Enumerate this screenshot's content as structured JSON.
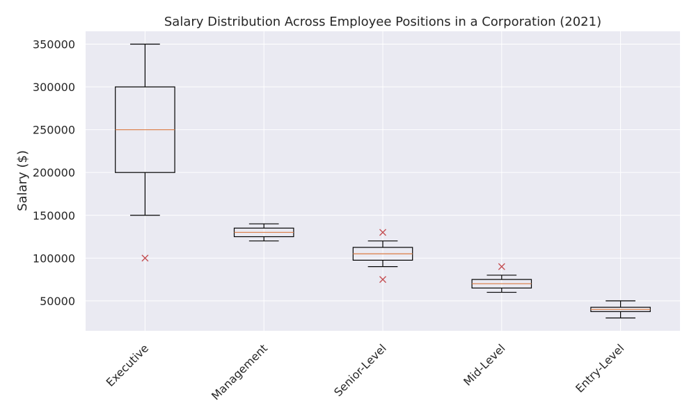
{
  "chart_data": {
    "type": "box",
    "title": "Salary Distribution Across Employee Positions in a Corporation (2021)",
    "xlabel": "",
    "ylabel": "Salary ($)",
    "ylim": [
      15000,
      365000
    ],
    "yticks": [
      50000,
      100000,
      150000,
      200000,
      250000,
      300000,
      350000
    ],
    "grid": true,
    "categories": [
      "Executive",
      "Management",
      "Senior-Level",
      "Mid-Level",
      "Entry-Level"
    ],
    "boxes": [
      {
        "min": 150000,
        "q1": 200000,
        "median": 250000,
        "q3": 300000,
        "max": 350000,
        "outliers": [
          100000
        ]
      },
      {
        "min": 120000,
        "q1": 125000,
        "median": 130000,
        "q3": 135000,
        "max": 140000,
        "outliers": []
      },
      {
        "min": 90000,
        "q1": 97500,
        "median": 105000,
        "q3": 112500,
        "max": 120000,
        "outliers": [
          75000,
          130000
        ]
      },
      {
        "min": 60000,
        "q1": 65000,
        "median": 70000,
        "q3": 75000,
        "max": 80000,
        "outliers": [
          90000
        ]
      },
      {
        "min": 30000,
        "q1": 37500,
        "median": 40000,
        "q3": 42500,
        "max": 50000,
        "outliers": []
      }
    ],
    "colors": {
      "background": "#eaeaf2",
      "grid": "#ffffff",
      "box": "#000000",
      "median": "#dd8452",
      "outlier": "#c44e52"
    }
  }
}
